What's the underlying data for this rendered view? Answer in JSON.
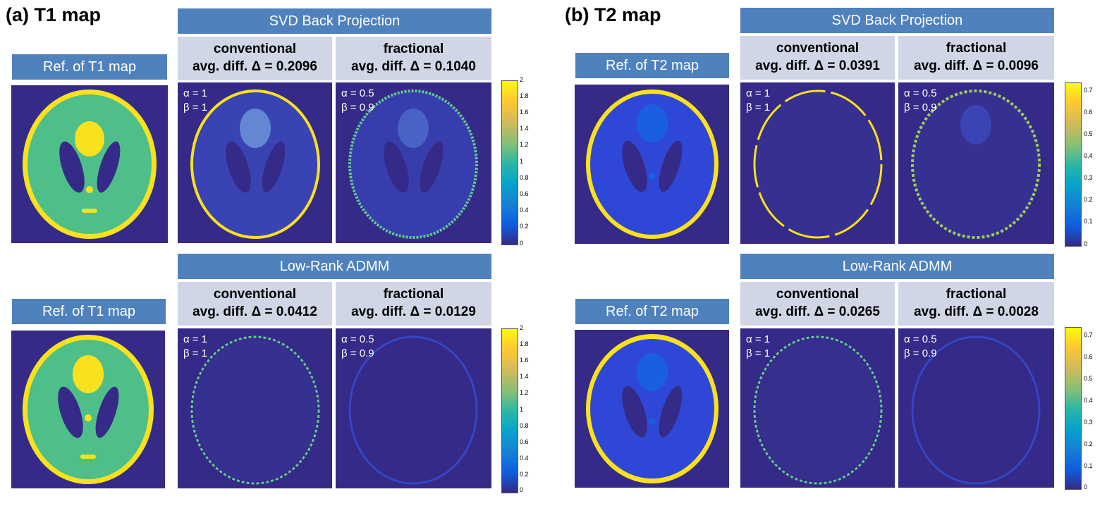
{
  "panels": [
    {
      "title": "(a) T1 map",
      "rows": [
        {
          "ref_label": "Ref. of T1 map",
          "method": "SVD Back Projection",
          "conventional": {
            "name": "conventional",
            "diff": "avg. diff. Δ = 0.2096",
            "alpha": "α = 1",
            "beta": "β = 1"
          },
          "fractional": {
            "name": "fractional",
            "diff": "avg. diff. Δ = 0.1040",
            "alpha": "α = 0.5",
            "beta": "β = 0.9"
          }
        },
        {
          "ref_label": "Ref. of T1 map",
          "method": "Low-Rank ADMM",
          "conventional": {
            "name": "conventional",
            "diff": "avg. diff. Δ = 0.0412",
            "alpha": "α = 1",
            "beta": "β = 1"
          },
          "fractional": {
            "name": "fractional",
            "diff": "avg. diff. Δ = 0.0129",
            "alpha": "α = 0.5",
            "beta": "β = 0.9"
          }
        }
      ],
      "colorbar_ticks": [
        "2",
        "1.8",
        "1.6",
        "1.4",
        "1.2",
        "1",
        "0.8",
        "0.6",
        "0.4",
        "0.2",
        "0"
      ]
    },
    {
      "title": "(b) T2 map",
      "rows": [
        {
          "ref_label": "Ref. of T2 map",
          "method": "SVD Back Projection",
          "conventional": {
            "name": "conventional",
            "diff": "avg. diff. Δ = 0.0391",
            "alpha": "α = 1",
            "beta": "β = 1"
          },
          "fractional": {
            "name": "fractional",
            "diff": "avg. diff. Δ = 0.0096",
            "alpha": "α = 0.5",
            "beta": "β = 0.9"
          }
        },
        {
          "ref_label": "Ref. of T2 map",
          "method": "Low-Rank ADMM",
          "conventional": {
            "name": "conventional",
            "diff": "avg. diff. Δ = 0.0265",
            "alpha": "α = 1",
            "beta": "β = 1"
          },
          "fractional": {
            "name": "fractional",
            "diff": "avg. diff. Δ = 0.0028",
            "alpha": "α = 0.5",
            "beta": "β = 0.9"
          }
        }
      ],
      "colorbar_ticks": [
        "0.7",
        "0.6",
        "0.5",
        "0.4",
        "0.3",
        "0.2",
        "0.1",
        "0"
      ]
    }
  ],
  "colors": {
    "header_blue": "#4f81bd",
    "subheader_gray": "#d0d6e5",
    "map_background": "#352a87",
    "ring_yellow": "#f9e11e",
    "phantom_green": "#4fbf8a",
    "phantom_blue": "#2f47d6"
  }
}
